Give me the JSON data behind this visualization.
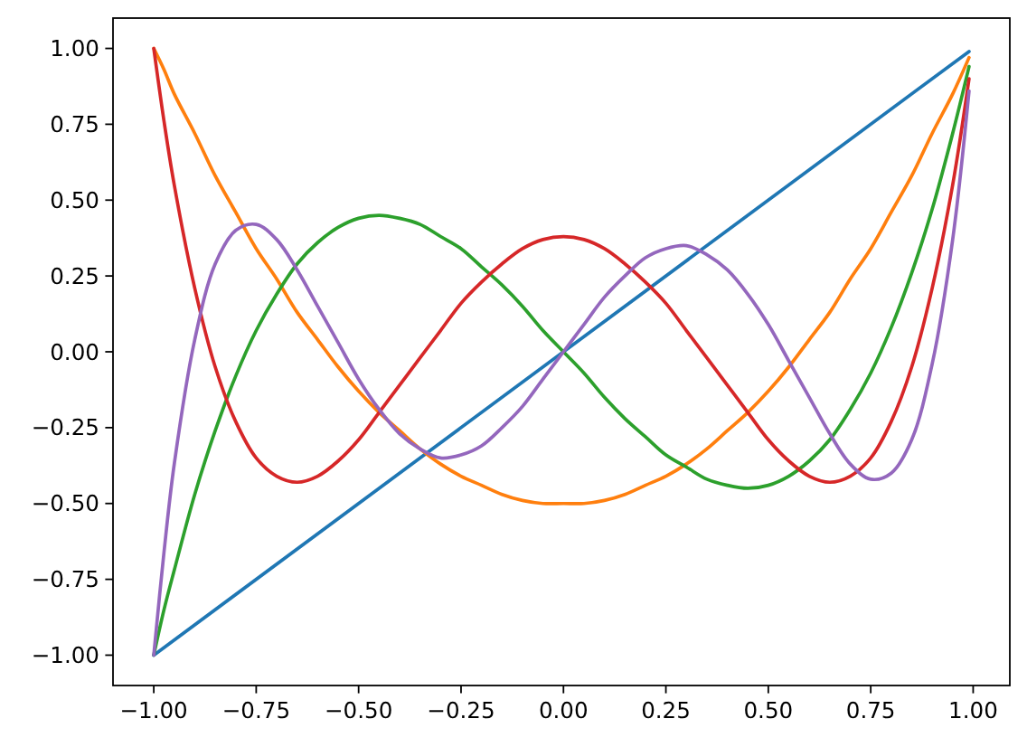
{
  "chart_data": {
    "type": "line",
    "x": [
      -1,
      -0.975,
      -0.95,
      -0.9,
      -0.85,
      -0.8,
      -0.75,
      -0.7,
      -0.65,
      -0.6,
      -0.55,
      -0.5,
      -0.45,
      -0.4,
      -0.35,
      -0.3,
      -0.25,
      -0.2,
      -0.15,
      -0.1,
      -0.05,
      0,
      0.05,
      0.1,
      0.15,
      0.2,
      0.25,
      0.3,
      0.35,
      0.4,
      0.45,
      0.5,
      0.55,
      0.6,
      0.65,
      0.7,
      0.75,
      0.8,
      0.85,
      0.9,
      0.95,
      0.99
    ],
    "series": [
      {
        "color": "#1f77b4",
        "x": [
          -1,
          0.99
        ],
        "values": [
          -1,
          0.99
        ]
      },
      {
        "color": "#ff7f0e",
        "values": [
          1,
          0.93,
          0.85,
          0.72,
          0.58,
          0.46,
          0.34,
          0.24,
          0.13,
          0.04,
          -0.05,
          -0.13,
          -0.2,
          -0.26,
          -0.32,
          -0.37,
          -0.41,
          -0.44,
          -0.47,
          -0.49,
          -0.5,
          -0.5,
          -0.5,
          -0.49,
          -0.47,
          -0.44,
          -0.41,
          -0.37,
          -0.32,
          -0.26,
          -0.2,
          -0.13,
          -0.05,
          0.04,
          0.13,
          0.24,
          0.34,
          0.46,
          0.58,
          0.72,
          0.85,
          0.97
        ]
      },
      {
        "color": "#2ca02c",
        "values": [
          -1,
          -0.85,
          -0.72,
          -0.47,
          -0.26,
          -0.08,
          0.07,
          0.19,
          0.29,
          0.36,
          0.41,
          0.44,
          0.45,
          0.44,
          0.42,
          0.38,
          0.34,
          0.28,
          0.22,
          0.15,
          0.07,
          0,
          -0.07,
          -0.15,
          -0.22,
          -0.28,
          -0.34,
          -0.38,
          -0.42,
          -0.44,
          -0.45,
          -0.44,
          -0.41,
          -0.36,
          -0.29,
          -0.19,
          -0.07,
          0.08,
          0.26,
          0.47,
          0.72,
          0.94
        ]
      },
      {
        "color": "#d62728",
        "values": [
          1,
          0.76,
          0.55,
          0.21,
          -0.05,
          -0.23,
          -0.35,
          -0.41,
          -0.43,
          -0.41,
          -0.36,
          -0.29,
          -0.2,
          -0.11,
          -0.02,
          0.07,
          0.16,
          0.23,
          0.29,
          0.34,
          0.37,
          0.38,
          0.37,
          0.34,
          0.29,
          0.23,
          0.16,
          0.07,
          -0.02,
          -0.11,
          -0.2,
          -0.29,
          -0.36,
          -0.41,
          -0.43,
          -0.41,
          -0.35,
          -0.23,
          -0.05,
          0.21,
          0.55,
          0.9
        ]
      },
      {
        "color": "#9467bd",
        "values": [
          -1,
          -0.66,
          -0.37,
          0.04,
          0.29,
          0.4,
          0.42,
          0.37,
          0.27,
          0.15,
          0.03,
          -0.09,
          -0.19,
          -0.27,
          -0.32,
          -0.35,
          -0.34,
          -0.31,
          -0.25,
          -0.18,
          -0.09,
          0,
          0.09,
          0.18,
          0.25,
          0.31,
          0.34,
          0.35,
          0.32,
          0.27,
          0.19,
          0.09,
          -0.03,
          -0.15,
          -0.27,
          -0.37,
          -0.42,
          -0.4,
          -0.29,
          -0.04,
          0.37,
          0.86
        ]
      }
    ],
    "xlim": [
      -1.0995,
      1.0895
    ],
    "xticks": [
      {
        "value": -1,
        "label": "−1.00"
      },
      {
        "value": -0.75,
        "label": "−0.75"
      },
      {
        "value": -0.5,
        "label": "−0.50"
      },
      {
        "value": -0.25,
        "label": "−0.25"
      },
      {
        "value": 0,
        "label": "0.00"
      },
      {
        "value": 0.25,
        "label": "0.25"
      },
      {
        "value": 0.5,
        "label": "0.50"
      },
      {
        "value": 0.75,
        "label": "0.75"
      },
      {
        "value": 1,
        "label": "1.00"
      }
    ],
    "ylim": [
      -1.1,
      1.1
    ],
    "yticks": [
      {
        "value": -1,
        "label": "−1.00"
      },
      {
        "value": -0.75,
        "label": "−0.75"
      },
      {
        "value": -0.5,
        "label": "−0.50"
      },
      {
        "value": -0.25,
        "label": "−0.25"
      },
      {
        "value": 0,
        "label": "0.00"
      },
      {
        "value": 0.25,
        "label": "0.25"
      },
      {
        "value": 0.5,
        "label": "0.50"
      },
      {
        "value": 0.75,
        "label": "0.75"
      },
      {
        "value": 1,
        "label": "1.00"
      }
    ],
    "grid": false,
    "marker": "none",
    "line_style": "solid"
  }
}
